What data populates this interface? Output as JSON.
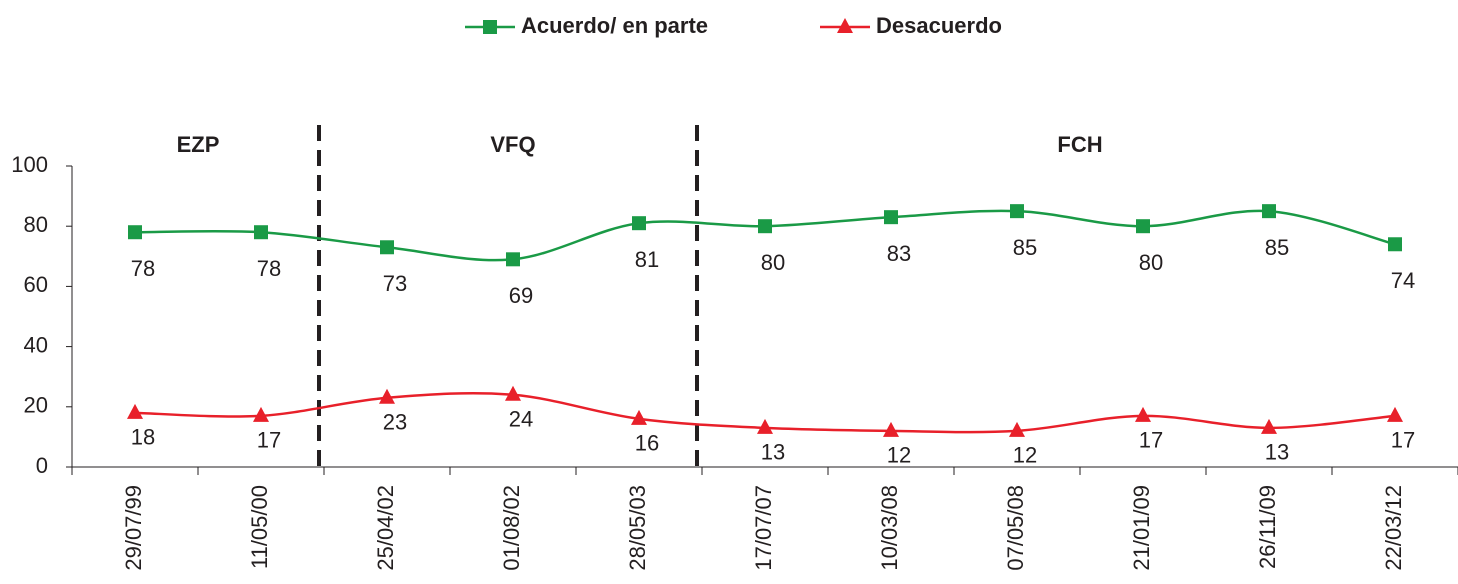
{
  "chart_data": {
    "type": "line",
    "categories": [
      "29/07/99",
      "11/05/00",
      "25/04/02",
      "01/08/02",
      "28/05/03",
      "17/07/07",
      "10/03/08",
      "07/05/08",
      "21/01/09",
      "26/11/09",
      "22/03/12"
    ],
    "series": [
      {
        "name": "Acuerdo/ en parte",
        "color": "#1a9a46",
        "marker": "square",
        "values": [
          78,
          78,
          73,
          69,
          81,
          80,
          83,
          85,
          80,
          85,
          74
        ]
      },
      {
        "name": "Desacuerdo",
        "color": "#e8202a",
        "marker": "triangle",
        "values": [
          18,
          17,
          23,
          24,
          16,
          13,
          12,
          12,
          17,
          13,
          17
        ]
      }
    ],
    "annotations": [
      {
        "text": "EZP",
        "from": "29/07/99",
        "to": "11/05/00"
      },
      {
        "text": "VFQ",
        "from": "25/04/02",
        "to": "28/05/03"
      },
      {
        "text": "FCH",
        "from": "17/07/07",
        "to": "22/03/12"
      }
    ],
    "ylim": [
      0,
      100
    ],
    "yticks": [
      0,
      20,
      40,
      60,
      80,
      100
    ],
    "grid": false,
    "smooth": true,
    "legend": "top"
  }
}
